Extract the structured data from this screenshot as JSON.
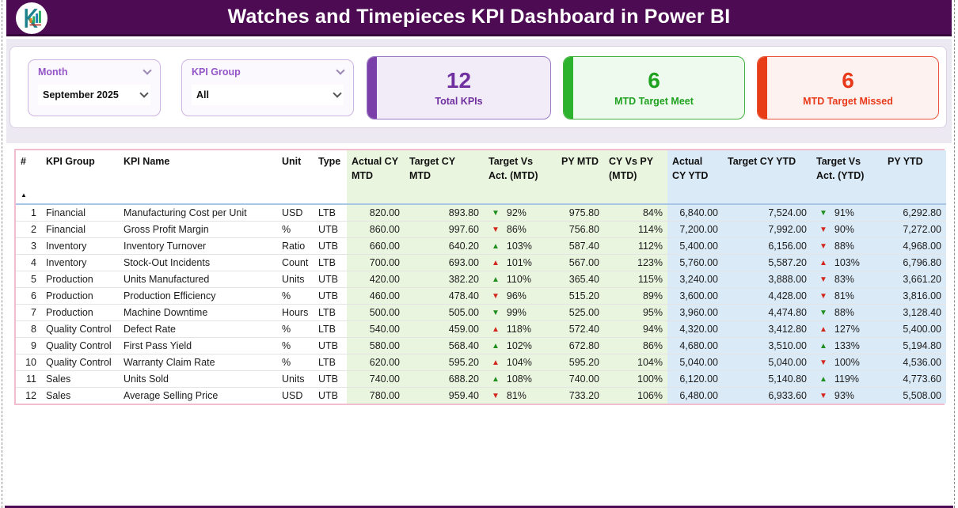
{
  "header": {
    "title": "Watches and Timepieces KPI Dashboard in Power BI",
    "logo_letter": "K"
  },
  "filters": {
    "month": {
      "label": "Month",
      "value": "September 2025"
    },
    "kpi_group": {
      "label": "KPI Group",
      "value": "All"
    }
  },
  "cards": {
    "total": {
      "value": "12",
      "label": "Total KPIs",
      "color": "#7030a0"
    },
    "meet": {
      "value": "6",
      "label": "MTD Target Meet",
      "color": "#1fa21f"
    },
    "missed": {
      "value": "6",
      "label": "MTD Target Missed",
      "color": "#e8391a"
    }
  },
  "table": {
    "sort_indicator": "▲",
    "columns": [
      "#",
      "KPI Group",
      "KPI Name",
      "Unit",
      "Type",
      "Actual CY MTD",
      "Target CY MTD",
      "Target Vs Act. (MTD)",
      "PY MTD",
      "CY Vs PY (MTD)",
      "Actual CY YTD",
      "Target CY YTD",
      "Target Vs Act. (YTD)",
      "PY YTD"
    ],
    "rows": [
      {
        "num": "1",
        "group": "Financial",
        "name": "Manufacturing Cost per Unit",
        "unit": "USD",
        "type": "LTB",
        "actual_mtd": "820.00",
        "target_mtd": "893.80",
        "tva_mtd": {
          "arrow": "▼",
          "color": "green",
          "value": "92%"
        },
        "py_mtd": "975.80",
        "cy_vs_py_mtd": "84%",
        "actual_ytd": "6,840.00",
        "target_ytd": "7,524.00",
        "tva_ytd": {
          "arrow": "▼",
          "color": "green",
          "value": "91%"
        },
        "py_ytd": "6,292.80"
      },
      {
        "num": "2",
        "group": "Financial",
        "name": "Gross Profit Margin",
        "unit": "%",
        "type": "UTB",
        "actual_mtd": "860.00",
        "target_mtd": "997.60",
        "tva_mtd": {
          "arrow": "▼",
          "color": "red",
          "value": "86%"
        },
        "py_mtd": "756.80",
        "cy_vs_py_mtd": "114%",
        "actual_ytd": "7,200.00",
        "target_ytd": "7,992.00",
        "tva_ytd": {
          "arrow": "▼",
          "color": "red",
          "value": "90%"
        },
        "py_ytd": "7,272.00"
      },
      {
        "num": "3",
        "group": "Inventory",
        "name": "Inventory Turnover",
        "unit": "Ratio",
        "type": "UTB",
        "actual_mtd": "660.00",
        "target_mtd": "640.20",
        "tva_mtd": {
          "arrow": "▲",
          "color": "green",
          "value": "103%"
        },
        "py_mtd": "587.40",
        "cy_vs_py_mtd": "112%",
        "actual_ytd": "5,400.00",
        "target_ytd": "6,156.00",
        "tva_ytd": {
          "arrow": "▼",
          "color": "red",
          "value": "88%"
        },
        "py_ytd": "4,968.00"
      },
      {
        "num": "4",
        "group": "Inventory",
        "name": "Stock-Out Incidents",
        "unit": "Count",
        "type": "LTB",
        "actual_mtd": "700.00",
        "target_mtd": "693.00",
        "tva_mtd": {
          "arrow": "▲",
          "color": "red",
          "value": "101%"
        },
        "py_mtd": "567.00",
        "cy_vs_py_mtd": "123%",
        "actual_ytd": "5,760.00",
        "target_ytd": "5,587.20",
        "tva_ytd": {
          "arrow": "▲",
          "color": "red",
          "value": "103%"
        },
        "py_ytd": "6,796.80"
      },
      {
        "num": "5",
        "group": "Production",
        "name": "Units Manufactured",
        "unit": "Units",
        "type": "UTB",
        "actual_mtd": "420.00",
        "target_mtd": "382.20",
        "tva_mtd": {
          "arrow": "▲",
          "color": "green",
          "value": "110%"
        },
        "py_mtd": "365.40",
        "cy_vs_py_mtd": "115%",
        "actual_ytd": "3,240.00",
        "target_ytd": "3,888.00",
        "tva_ytd": {
          "arrow": "▼",
          "color": "red",
          "value": "83%"
        },
        "py_ytd": "3,661.20"
      },
      {
        "num": "6",
        "group": "Production",
        "name": "Production Efficiency",
        "unit": "%",
        "type": "UTB",
        "actual_mtd": "460.00",
        "target_mtd": "478.40",
        "tva_mtd": {
          "arrow": "▼",
          "color": "red",
          "value": "96%"
        },
        "py_mtd": "515.20",
        "cy_vs_py_mtd": "89%",
        "actual_ytd": "3,600.00",
        "target_ytd": "4,428.00",
        "tva_ytd": {
          "arrow": "▼",
          "color": "red",
          "value": "81%"
        },
        "py_ytd": "3,816.00"
      },
      {
        "num": "7",
        "group": "Production",
        "name": "Machine Downtime",
        "unit": "Hours",
        "type": "LTB",
        "actual_mtd": "500.00",
        "target_mtd": "505.00",
        "tva_mtd": {
          "arrow": "▼",
          "color": "green",
          "value": "99%"
        },
        "py_mtd": "525.00",
        "cy_vs_py_mtd": "95%",
        "actual_ytd": "3,960.00",
        "target_ytd": "4,474.80",
        "tva_ytd": {
          "arrow": "▼",
          "color": "green",
          "value": "88%"
        },
        "py_ytd": "3,128.40"
      },
      {
        "num": "8",
        "group": "Quality Control",
        "name": "Defect Rate",
        "unit": "%",
        "type": "LTB",
        "actual_mtd": "540.00",
        "target_mtd": "459.00",
        "tva_mtd": {
          "arrow": "▲",
          "color": "red",
          "value": "118%"
        },
        "py_mtd": "572.40",
        "cy_vs_py_mtd": "94%",
        "actual_ytd": "4,320.00",
        "target_ytd": "3,412.80",
        "tva_ytd": {
          "arrow": "▲",
          "color": "red",
          "value": "127%"
        },
        "py_ytd": "5,400.00"
      },
      {
        "num": "9",
        "group": "Quality Control",
        "name": "First Pass Yield",
        "unit": "%",
        "type": "UTB",
        "actual_mtd": "580.00",
        "target_mtd": "568.40",
        "tva_mtd": {
          "arrow": "▲",
          "color": "green",
          "value": "102%"
        },
        "py_mtd": "672.80",
        "cy_vs_py_mtd": "86%",
        "actual_ytd": "4,680.00",
        "target_ytd": "3,510.00",
        "tva_ytd": {
          "arrow": "▲",
          "color": "green",
          "value": "133%"
        },
        "py_ytd": "5,194.80"
      },
      {
        "num": "10",
        "group": "Quality Control",
        "name": "Warranty Claim Rate",
        "unit": "%",
        "type": "LTB",
        "actual_mtd": "620.00",
        "target_mtd": "595.20",
        "tva_mtd": {
          "arrow": "▲",
          "color": "red",
          "value": "104%"
        },
        "py_mtd": "595.20",
        "cy_vs_py_mtd": "104%",
        "actual_ytd": "5,040.00",
        "target_ytd": "5,040.00",
        "tva_ytd": {
          "arrow": "▼",
          "color": "red",
          "value": "100%"
        },
        "py_ytd": "4,536.00"
      },
      {
        "num": "11",
        "group": "Sales",
        "name": "Units Sold",
        "unit": "Units",
        "type": "UTB",
        "actual_mtd": "740.00",
        "target_mtd": "688.20",
        "tva_mtd": {
          "arrow": "▲",
          "color": "green",
          "value": "108%"
        },
        "py_mtd": "740.00",
        "cy_vs_py_mtd": "100%",
        "actual_ytd": "6,120.00",
        "target_ytd": "5,140.80",
        "tva_ytd": {
          "arrow": "▲",
          "color": "green",
          "value": "119%"
        },
        "py_ytd": "4,773.60"
      },
      {
        "num": "12",
        "group": "Sales",
        "name": "Average Selling Price",
        "unit": "USD",
        "type": "UTB",
        "actual_mtd": "780.00",
        "target_mtd": "959.40",
        "tva_mtd": {
          "arrow": "▼",
          "color": "red",
          "value": "81%"
        },
        "py_mtd": "733.20",
        "cy_vs_py_mtd": "106%",
        "actual_ytd": "6,480.00",
        "target_ytd": "6,933.60",
        "tva_ytd": {
          "arrow": "▼",
          "color": "red",
          "value": "93%"
        },
        "py_ytd": "5,508.00"
      }
    ]
  },
  "colors": {
    "header_bar": "#4c0b52",
    "accent_purple": "#7030a0",
    "good_green": "#1e8e1e",
    "bad_red": "#d3281e",
    "mtd_band": "#eaf5df",
    "ytd_band": "#dbeaf7"
  }
}
